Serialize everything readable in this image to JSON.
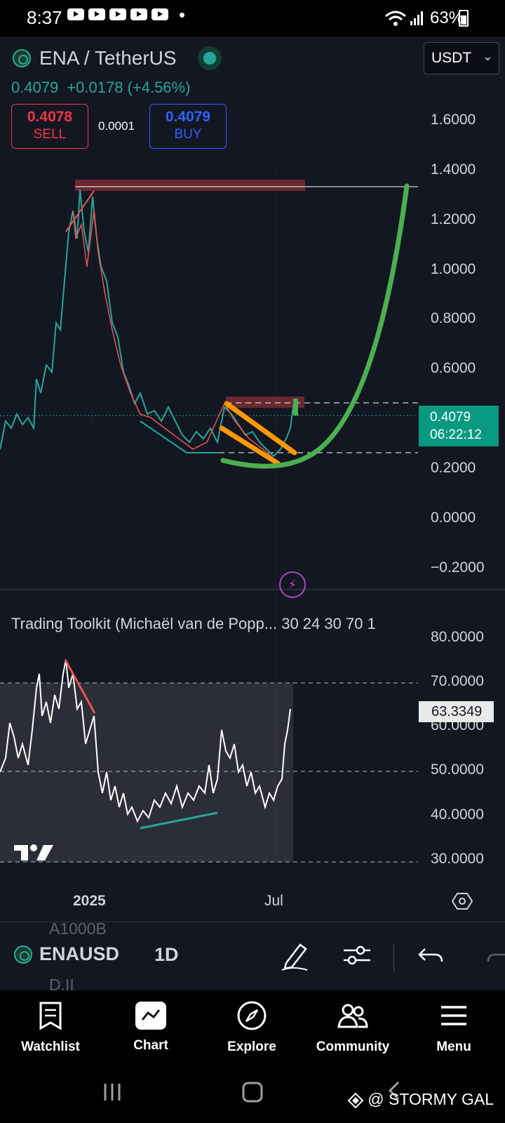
{
  "status_bar": {
    "time": "8:37",
    "battery": "63%"
  },
  "header": {
    "symbol_title": "ENA / TetherUS",
    "currency": "USDT",
    "last_price": "0.4079",
    "change": "+0.0178 (+4.56%)",
    "sell_price": "0.4078",
    "sell_label": "SELL",
    "spread": "0.0001",
    "buy_price": "0.4079",
    "buy_label": "BUY"
  },
  "price_axis": [
    "1.6000",
    "1.4000",
    "1.2000",
    "1.0000",
    "0.8000",
    "0.6000",
    "0.2000",
    "0.0000",
    "−0.2000"
  ],
  "price_tag": {
    "price": "0.4079",
    "countdown": "06:22:12"
  },
  "indicator": {
    "title": "Trading Toolkit (Michaël van de Popp... 30 24 30 70 1",
    "axis": [
      "80.0000",
      "70.0000",
      "60.0000",
      "50.0000",
      "40.0000",
      "30.0000"
    ],
    "current_value": "63.3349"
  },
  "time_axis": [
    "2025",
    "Jul"
  ],
  "toolbar": {
    "ticker_ghost_top": "A1000B",
    "ticker": "ENAUSD",
    "ticker_ghost_bottom": "D.II",
    "interval": "1D"
  },
  "nav": {
    "watchlist": "Watchlist",
    "chart": "Chart",
    "explore": "Explore",
    "community": "Community",
    "menu": "Menu"
  },
  "watermark": "@ STORMY GAL",
  "colors": {
    "background": "#131722",
    "up": "#26a69a",
    "down": "#ef5350",
    "sell": "#f23645",
    "buy": "#2962ff",
    "projection": "#4caf50",
    "channel": "#ff9800",
    "resistance_zone": "#7a2b33"
  }
}
